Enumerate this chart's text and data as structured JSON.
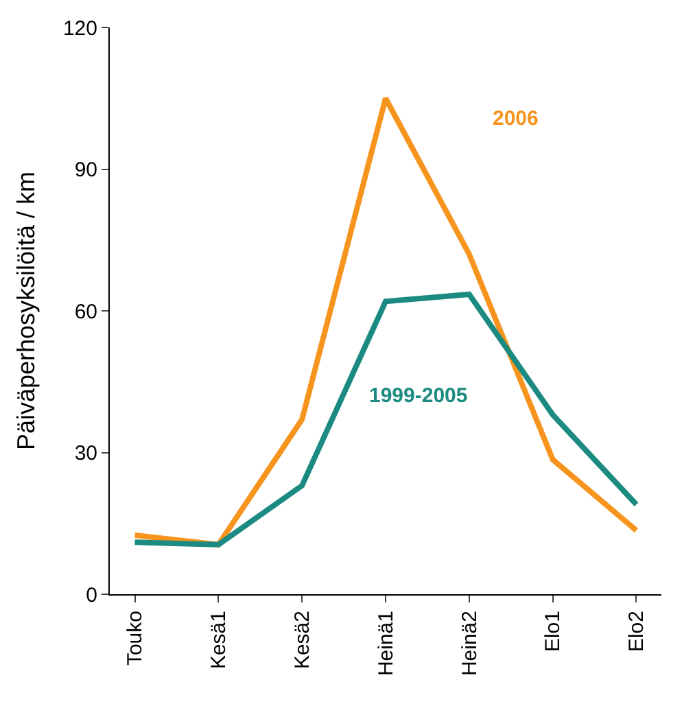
{
  "chart_data": {
    "type": "line",
    "ylabel": "Päiväperhosyksilöitä / km",
    "categories": [
      "Touko",
      "Kesä1",
      "Kesä2",
      "Heinä1",
      "Heinä2",
      "Elo1",
      "Elo2"
    ],
    "series": [
      {
        "name": "2006",
        "color": "#f7941d",
        "values": [
          12.5,
          10.5,
          37,
          105,
          72,
          28.5,
          13.5
        ]
      },
      {
        "name": "1999-2005",
        "color": "#1b8a80",
        "values": [
          11,
          10.5,
          23,
          62,
          63.5,
          38,
          19
        ]
      }
    ],
    "ylim": [
      0,
      120
    ],
    "yticks": [
      0,
      30,
      60,
      90,
      120
    ],
    "legend": false,
    "marker": "none",
    "line_style": "solid"
  }
}
